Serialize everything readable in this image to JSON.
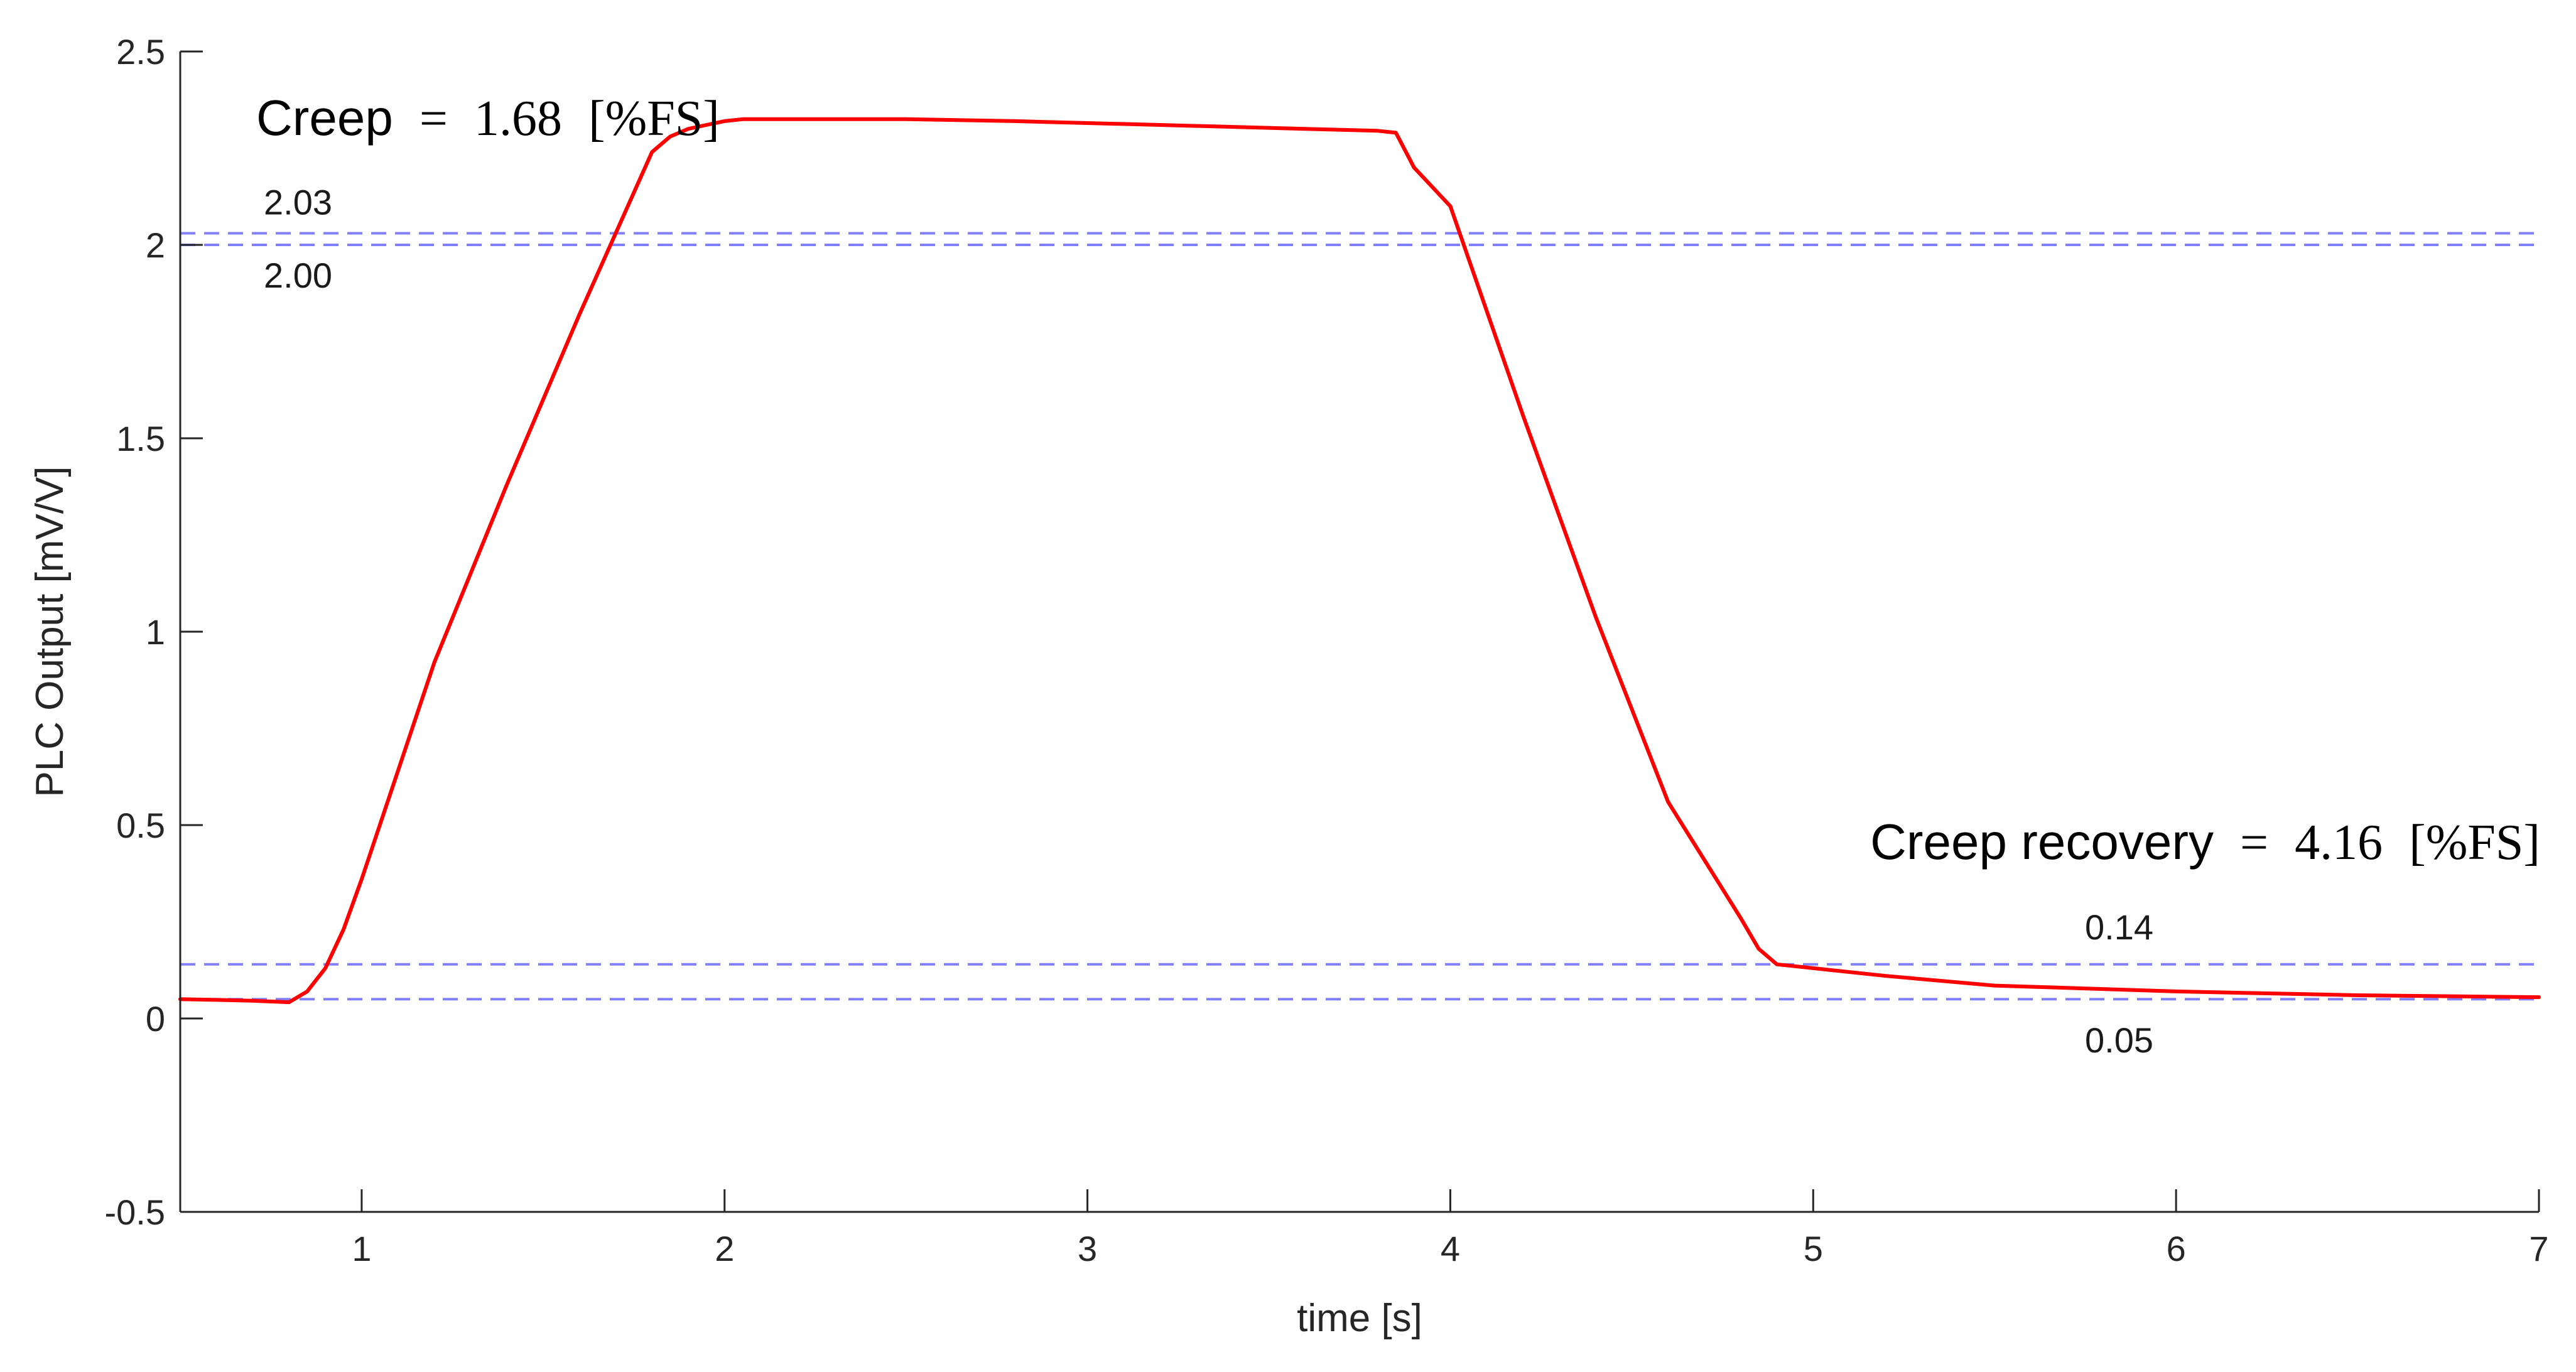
{
  "chart_data": {
    "type": "line",
    "title": "",
    "xlabel": "time [s]",
    "ylabel": "PLC Output [mV/V]",
    "xlim": [
      0.5,
      7
    ],
    "ylim": [
      -0.5,
      2.5
    ],
    "xticks": [
      1,
      2,
      3,
      4,
      5,
      6,
      7
    ],
    "yticks": [
      -0.5,
      0,
      0.5,
      1,
      1.5,
      2,
      2.5
    ],
    "xtick_labels": [
      "1",
      "2",
      "3",
      "4",
      "5",
      "6",
      "7"
    ],
    "ytick_labels": [
      "-0.5",
      "0",
      "0.5",
      "1",
      "1.5",
      "2",
      "2.5"
    ],
    "grid": false,
    "series": [
      {
        "color": "#ff0000",
        "x": [
          0.5,
          0.6,
          0.7,
          0.8,
          0.85,
          0.9,
          0.95,
          1.0,
          1.1,
          1.2,
          1.4,
          1.6,
          1.8,
          1.85,
          1.9,
          1.95,
          2.0,
          2.05,
          2.1,
          2.3,
          2.5,
          2.8,
          3.2,
          3.6,
          3.8,
          3.85,
          3.9,
          4.0,
          4.2,
          4.4,
          4.6,
          4.8,
          4.85,
          4.9,
          4.95,
          5.0,
          5.2,
          5.5,
          6.0,
          6.5,
          7.0
        ],
        "y": [
          0.05,
          0.048,
          0.046,
          0.042,
          0.07,
          0.13,
          0.23,
          0.36,
          0.64,
          0.92,
          1.38,
          1.82,
          2.24,
          2.28,
          2.3,
          2.31,
          2.32,
          2.325,
          2.325,
          2.325,
          2.325,
          2.32,
          2.31,
          2.3,
          2.295,
          2.29,
          2.2,
          2.1,
          1.56,
          1.04,
          0.56,
          0.26,
          0.18,
          0.14,
          0.135,
          0.13,
          0.11,
          0.085,
          0.07,
          0.06,
          0.055
        ]
      }
    ],
    "reference_lines": [
      {
        "y": 2.03,
        "label": "2.03",
        "color": "#6b6bff",
        "style": "dashed"
      },
      {
        "y": 2.0,
        "label": "2.00",
        "color": "#6b6bff",
        "style": "dashed"
      },
      {
        "y": 0.14,
        "label": "0.14",
        "color": "#6b6bff",
        "style": "dashed"
      },
      {
        "y": 0.05,
        "label": "0.05",
        "color": "#6b6bff",
        "style": "dashed"
      }
    ],
    "annotations": [
      {
        "name": "Creep",
        "eq": "=",
        "value": "1.68",
        "unit": "[%FS]"
      },
      {
        "name": "Creep recovery",
        "eq": "=",
        "value": "4.16",
        "unit": "[%FS]"
      }
    ]
  }
}
